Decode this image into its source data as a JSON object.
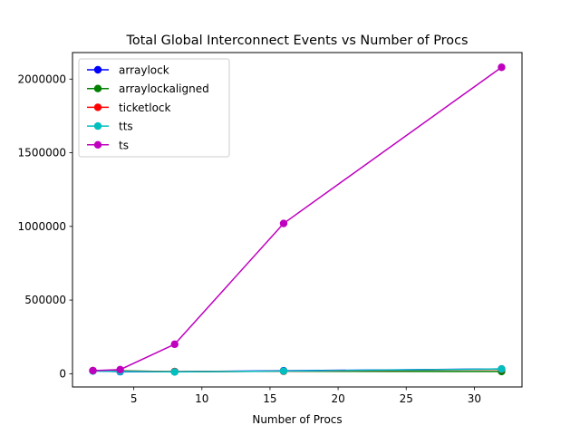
{
  "chart_data": {
    "type": "line",
    "title": "Total Global Interconnect Events vs Number of Procs",
    "xlabel": "Number of Procs",
    "ylabel": "",
    "xlim": [
      0.5,
      33.5
    ],
    "ylim": [
      -90000,
      2180000
    ],
    "xticks": [
      5,
      10,
      15,
      20,
      25,
      30
    ],
    "yticks": [
      0,
      500000,
      1000000,
      1500000,
      2000000
    ],
    "grid": false,
    "legend_position": "top-left",
    "x": [
      2,
      4,
      8,
      16,
      32
    ],
    "series": [
      {
        "name": "arraylock",
        "color": "#0000ff",
        "values": [
          20000,
          14000,
          14000,
          20000,
          32000
        ]
      },
      {
        "name": "arraylockaligned",
        "color": "#008000",
        "values": [
          20000,
          20000,
          14000,
          17000,
          15000
        ]
      },
      {
        "name": "ticketlock",
        "color": "#ff0000",
        "values": [
          20000,
          18000,
          14000,
          17000,
          30000
        ]
      },
      {
        "name": "tts",
        "color": "#00bfbf",
        "values": [
          18000,
          16000,
          12000,
          18000,
          32000
        ]
      },
      {
        "name": "ts",
        "color": "#bf00bf",
        "values": [
          21000,
          28000,
          200000,
          1020000,
          2080000
        ]
      }
    ]
  }
}
